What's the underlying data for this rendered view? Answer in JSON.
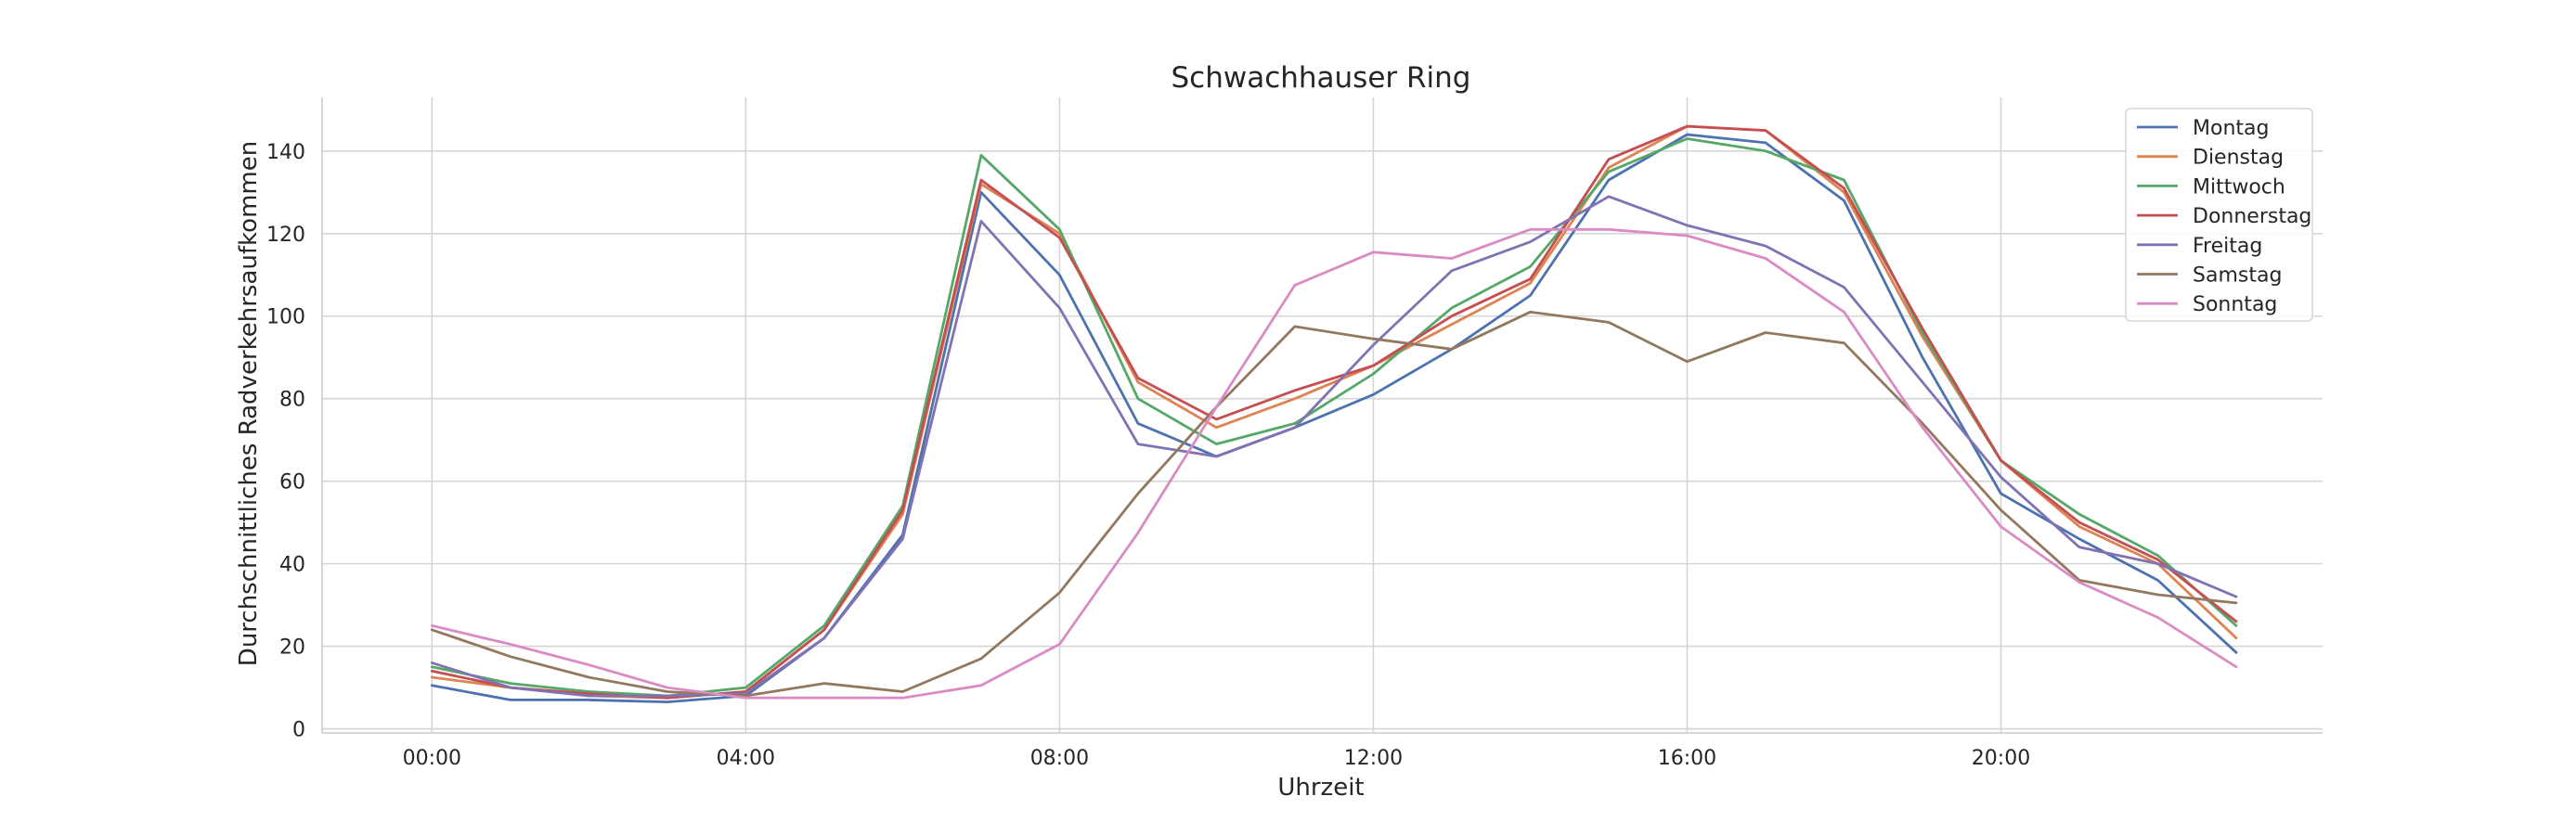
{
  "chart_data": {
    "type": "line",
    "title": "Schwachhauser Ring",
    "xlabel": "Uhrzeit",
    "ylabel": "Durchschnittliches Radverkehrsaufkommen",
    "x": [
      0,
      1,
      2,
      3,
      4,
      5,
      6,
      7,
      8,
      9,
      10,
      11,
      12,
      13,
      14,
      15,
      16,
      17,
      18,
      19,
      20,
      21,
      22,
      23
    ],
    "xlim": [
      -1.4,
      24.1
    ],
    "ylim": [
      -1,
      153
    ],
    "x_ticks": [
      0,
      4,
      8,
      12,
      16,
      20
    ],
    "x_tick_labels": [
      "00:00",
      "04:00",
      "08:00",
      "12:00",
      "16:00",
      "20:00"
    ],
    "y_ticks": [
      0,
      20,
      40,
      60,
      80,
      100,
      120,
      140
    ],
    "y_tick_labels": [
      "0",
      "20",
      "40",
      "60",
      "80",
      "100",
      "120",
      "140"
    ],
    "grid": true,
    "legend_position": "top-right",
    "series": [
      {
        "name": "Montag",
        "color": "#4c72b0",
        "values": [
          10.5,
          7,
          7,
          6.5,
          8,
          22,
          47,
          130,
          110,
          74,
          66,
          73,
          81,
          92,
          105,
          133,
          144,
          142,
          128,
          90,
          57,
          46,
          36,
          18.5
        ]
      },
      {
        "name": "Dienstag",
        "color": "#dd8452",
        "values": [
          12.5,
          10,
          8,
          7.5,
          9,
          24,
          52,
          132,
          120,
          84,
          73,
          80,
          88,
          98,
          108,
          136,
          146,
          145,
          130,
          95,
          65,
          49,
          40,
          22
        ]
      },
      {
        "name": "Mittwoch",
        "color": "#55a868",
        "values": [
          15,
          11,
          9,
          8,
          10,
          25,
          54,
          139,
          121,
          80,
          69,
          74,
          86,
          102,
          112,
          135,
          143,
          140,
          133,
          96,
          65,
          52,
          42,
          25
        ]
      },
      {
        "name": "Donnerstag",
        "color": "#c44e52",
        "values": [
          14,
          10,
          8.5,
          7.5,
          9,
          24,
          53,
          133,
          119,
          85,
          75,
          82,
          88,
          100,
          109,
          138,
          146,
          145,
          131,
          97,
          65,
          50,
          41,
          26
        ]
      },
      {
        "name": "Freitag",
        "color": "#8172b3",
        "values": [
          16,
          10,
          8,
          8,
          8.5,
          22,
          46,
          123,
          102,
          69,
          66,
          73,
          93,
          111,
          118,
          129,
          122,
          117,
          107,
          84,
          61,
          44,
          40,
          32
        ]
      },
      {
        "name": "Samstag",
        "color": "#937860",
        "values": [
          24,
          17.5,
          12.5,
          9,
          8,
          11,
          9,
          17,
          33,
          57,
          78,
          97.5,
          94.5,
          92,
          101,
          98.5,
          89,
          96,
          93.5,
          74,
          53,
          36,
          32.5,
          30.5
        ]
      },
      {
        "name": "Sonntag",
        "color": "#da8bc3",
        "values": [
          25,
          20.5,
          15.5,
          10,
          7.5,
          7.5,
          7.5,
          10.5,
          20.5,
          47.5,
          78,
          107.5,
          115.5,
          114,
          121,
          121,
          119.5,
          114,
          101,
          73,
          49,
          35.5,
          27,
          15
        ]
      }
    ]
  }
}
